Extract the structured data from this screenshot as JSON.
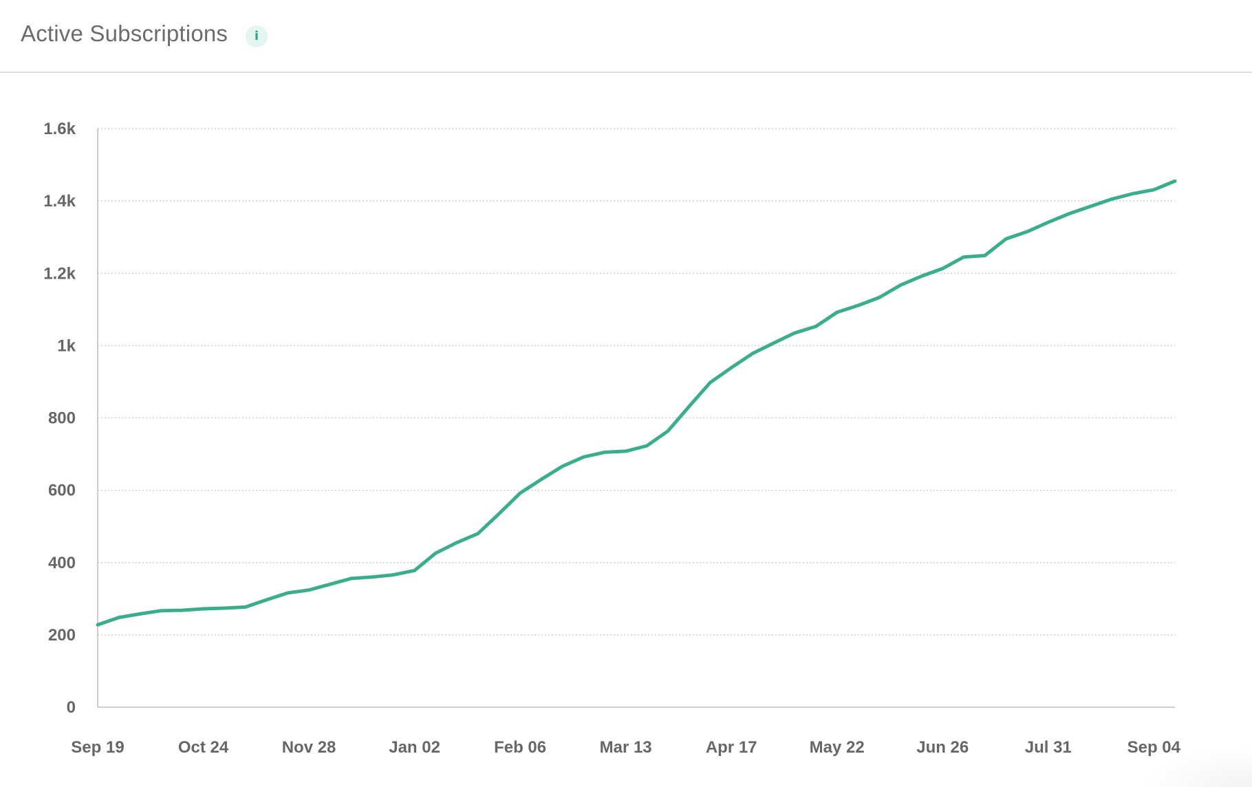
{
  "header": {
    "title": "Active Subscriptions",
    "info_icon": "info-icon",
    "info_symbol": "i"
  },
  "colors": {
    "line": "#3aae8c",
    "title": "#6b6b6b",
    "info_bg": "#e4f4ef",
    "info_fg": "#2fa886"
  },
  "chart_data": {
    "type": "line",
    "title": "",
    "xlabel": "",
    "ylabel": "",
    "ylim": [
      0,
      1600
    ],
    "y_ticks": [
      {
        "value": 0,
        "label": "0"
      },
      {
        "value": 200,
        "label": "200"
      },
      {
        "value": 400,
        "label": "400"
      },
      {
        "value": 600,
        "label": "600"
      },
      {
        "value": 800,
        "label": "800"
      },
      {
        "value": 1000,
        "label": "1k"
      },
      {
        "value": 1200,
        "label": "1.2k"
      },
      {
        "value": 1400,
        "label": "1.4k"
      },
      {
        "value": 1600,
        "label": "1.6k"
      }
    ],
    "x_ticks": [
      "Sep 19",
      "Oct 24",
      "Nov 28",
      "Jan 02",
      "Feb 06",
      "Mar 13",
      "Apr 17",
      "May 22",
      "Jun 26",
      "Jul 31",
      "Sep 04"
    ],
    "grid": true,
    "legend": "none",
    "series": [
      {
        "values": [
          228,
          248,
          258,
          267,
          268,
          272,
          274,
          277,
          297,
          316,
          324,
          340,
          356,
          360,
          366,
          378,
          426,
          455,
          480,
          535,
          592,
          630,
          666,
          692,
          705,
          708,
          723,
          764,
          832,
          898,
          939,
          978,
          1007,
          1035,
          1053,
          1092,
          1111,
          1133,
          1167,
          1192,
          1213,
          1245,
          1249,
          1295,
          1315,
          1341,
          1365,
          1385,
          1405,
          1420,
          1431,
          1455
        ]
      }
    ]
  }
}
